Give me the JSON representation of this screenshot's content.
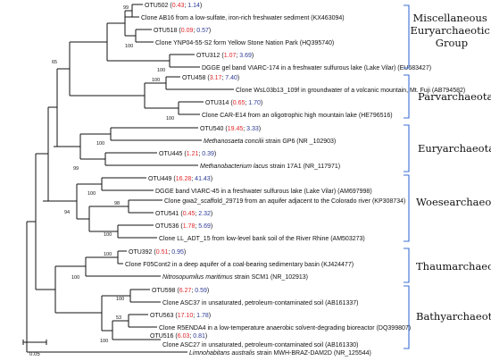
{
  "taxa": [
    {
      "id": "t1",
      "otu": "OTU502",
      "p1": "0.43",
      "p2": "1.14"
    },
    {
      "id": "t2",
      "text": "Clone AB16  from a low-sulfate, iron-rich freshwater sediment (KX463094)"
    },
    {
      "id": "t3",
      "otu": "OTU518",
      "p1": "0.09",
      "p2": "0.57"
    },
    {
      "id": "t4",
      "text": "Clone YNP04-55-S2 form Yellow Stone Nation Park (HQ395740)"
    },
    {
      "id": "t5",
      "otu": "OTU312",
      "p1": "1.07",
      "p2": "3.69"
    },
    {
      "id": "t6",
      "text": "DGGE gel band VIARC-174 in a freshwater sulfurous lake (Lake Vilar) (EU683427)"
    },
    {
      "id": "t7",
      "otu": "OTU458",
      "p1": "3.17",
      "p2": "7.40"
    },
    {
      "id": "t8",
      "text": "Clone WsL03b13_109f  in groundwater of  a volcanic mountain, Mt. Fuji (AB794582)"
    },
    {
      "id": "t9",
      "otu": "OTU314",
      "p1": "0.65",
      "p2": "1.70"
    },
    {
      "id": "t10",
      "text": "Clone CAR-E14 from an oligotrophic high mountain lake (HE796516)"
    },
    {
      "id": "t11",
      "otu": "OTU540",
      "p1": "19.45",
      "p2": "3.33"
    },
    {
      "id": "t12",
      "italic": "Methanosaeta concilii",
      "rest": " strain GP6 (NR _102903)"
    },
    {
      "id": "t13",
      "otu": "OTU445",
      "p1": "1.21",
      "p2": "0.39"
    },
    {
      "id": "t14",
      "italic": "Methanobacterium lacus",
      "rest": " strain 17A1 (NR_117971)"
    },
    {
      "id": "t15",
      "otu": "OTU449",
      "p1": "16.28",
      "p2": "41.43"
    },
    {
      "id": "t16",
      "text": "DGGE band VIARC-45  in a freshwater sulfurous lake (Lake Vilar) (AM697998)"
    },
    {
      "id": "t17",
      "text": "Clone gwa2_scaffold_29719 from an aquifer adjacent to the Colorado river (KP308734)"
    },
    {
      "id": "t18",
      "otu": "OTU541",
      "p1": "0.45",
      "p2": "2.32"
    },
    {
      "id": "t19",
      "otu": "OTU536",
      "p1": "1.78",
      "p2": "5.69"
    },
    {
      "id": "t20",
      "text": "Clone LL_ADT_15 from low-level bank soil of the River Rhine (AM503273)"
    },
    {
      "id": "t21",
      "otu": "OTU392",
      "p1": "0.51",
      "p2": "0.95"
    },
    {
      "id": "t22",
      "text": "Clone F05Cont2  in a deep aquifer of a coal-bearing sedimentary basin (KJ424477)"
    },
    {
      "id": "t23",
      "italic": "Nitrosopumilus maritimus",
      "rest": " strain SCM1 (NR_102913)"
    },
    {
      "id": "t24",
      "otu": "OTU598",
      "p1": "6.27",
      "p2": "0.59"
    },
    {
      "id": "t25",
      "text": "Clone ASC37 in unsaturated, petroleum-contaminated soil (AB161337)"
    },
    {
      "id": "t26",
      "otu": "OTU563",
      "p1": "17.10",
      "p2": "1.78"
    },
    {
      "id": "t27",
      "text": "Clone R5ENDA4 in a low-temperature anaerobic solvent-degrading bioreactor (DQ399807)"
    },
    {
      "id": "t28",
      "otu": "OTU516",
      "p1": "6.03",
      "p2": "0.81"
    },
    {
      "id": "t29",
      "text": "Clone ASC27 in unsaturated, petroleum-contaminated soil (AB161330)"
    },
    {
      "id": "t30",
      "italic": "Limnohabitans australis",
      "rest": " strain MWH-BRAZ-DAM2D (NR_125544)"
    }
  ],
  "bootstrap": [
    "99",
    "100",
    "100",
    "65",
    "100",
    "100",
    "100",
    "99",
    "100",
    "98",
    "94",
    "100",
    "100",
    "100",
    "100",
    "53",
    "100"
  ],
  "groups": [
    "Miscellaneous Euryarchaeotic Group",
    "Parvarchaeota",
    "Euryarchaeota",
    "Woesearchaeota",
    "Thaumarchaeota",
    "Bathyarchaeota"
  ],
  "group_lines": [
    [
      "Miscellaneous",
      "Euryarchaeotic",
      "Group"
    ]
  ],
  "scale_label": "0.05",
  "colors": {
    "p1": "#e0262b",
    "p2": "#2b3a96",
    "bracket": "#3b6fd6"
  }
}
